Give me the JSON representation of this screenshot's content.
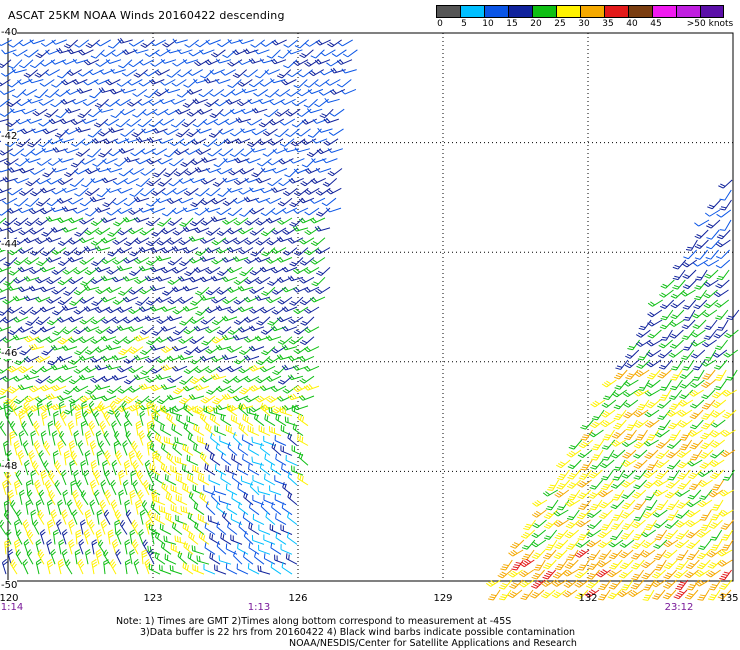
{
  "title": "ASCAT 25KM NOAA Winds 20160422 descending",
  "color_scale": {
    "bins": [
      {
        "label": "0",
        "color": "#555555"
      },
      {
        "label": "5",
        "color": "#00bfff"
      },
      {
        "label": "10",
        "color": "#0a55e6"
      },
      {
        "label": "15",
        "color": "#10229c"
      },
      {
        "label": "20",
        "color": "#0fbf14"
      },
      {
        "label": "25",
        "color": "#fff200"
      },
      {
        "label": "30",
        "color": "#f5a900"
      },
      {
        "label": "35",
        "color": "#e31a1a"
      },
      {
        "label": "40",
        "color": "#7a3d10"
      },
      {
        "label": "45",
        "color": "#f01af0"
      },
      {
        "label": ">50 knots",
        "color": "#5b0fa8"
      }
    ],
    "extra_swatch_color": "#c01fe0"
  },
  "lat_labels": [
    "-40",
    "-42",
    "-44",
    "-46",
    "-48",
    "-50"
  ],
  "lon_labels": [
    "120",
    "123",
    "126",
    "129",
    "132",
    "135"
  ],
  "times": [
    "1:14",
    "1:13",
    "23:12"
  ],
  "notes": {
    "line1": "Note: 1) Times are GMT 2)Times along bottom correspond to measurement at -45S",
    "line2": "3)Data buffer is 22 hrs from 20160422 4) Black wind barbs indicate possible contamination",
    "line3": "NOAA/NESDIS/Center for Satellite Applications and Research"
  }
}
